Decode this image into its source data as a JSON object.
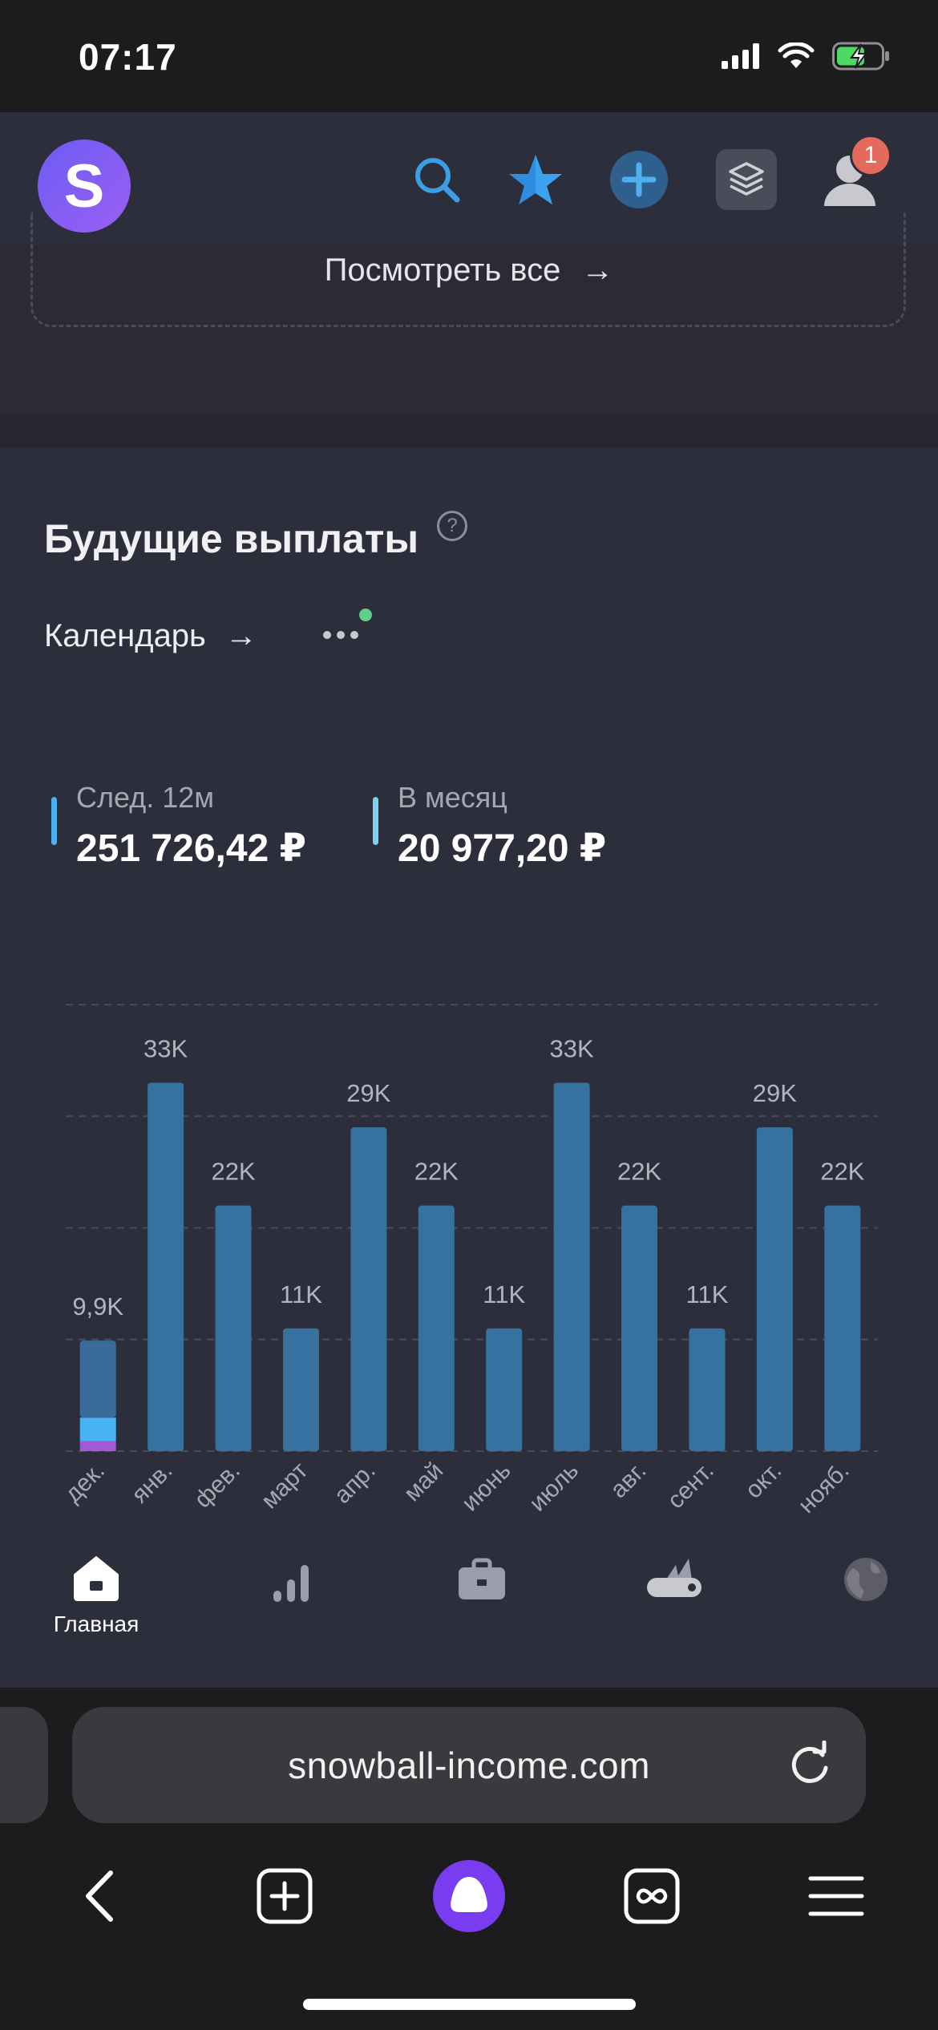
{
  "status_bar": {
    "time": "07:17"
  },
  "header": {
    "logo_letter": "S",
    "notification_count": "1"
  },
  "top_link": {
    "label": "Посмотреть все",
    "arrow": "→"
  },
  "section": {
    "title": "Будущие выплаты",
    "help": "?",
    "calendar_label": "Календарь",
    "calendar_arrow": "→",
    "stats": [
      {
        "label": "След. 12м",
        "value": "251 726,42 ₽",
        "color": "#4fb0ee"
      },
      {
        "label": "В месяц",
        "value": "20 977,20 ₽",
        "color": "#7ed0f0"
      }
    ]
  },
  "chart_data": {
    "type": "bar",
    "categories": [
      "дек.",
      "янв.",
      "фев.",
      "март",
      "апр.",
      "май",
      "июнь",
      "июль",
      "авг.",
      "сент.",
      "окт.",
      "нояб."
    ],
    "values": [
      9.9,
      33,
      22,
      11,
      29,
      22,
      11,
      33,
      22,
      11,
      29,
      22
    ],
    "data_labels": [
      "9,9K",
      "33K",
      "22K",
      "11K",
      "29K",
      "22K",
      "11K",
      "33K",
      "22K",
      "11K",
      "29K",
      "22K"
    ],
    "ylim": [
      0,
      40
    ],
    "grid": true,
    "stacked_first_bar": [
      {
        "color": "#3a6c9a",
        "value": 6.9
      },
      {
        "color": "#49b3f2",
        "value": 2.1
      },
      {
        "color": "#a05ad8",
        "value": 0.9
      }
    ],
    "bar_color": "#36729f",
    "title": "",
    "xlabel": "",
    "ylabel": ""
  },
  "tabs": [
    {
      "label": "Главная",
      "icon": "home-icon"
    },
    {
      "label": "",
      "icon": "analytics-icon"
    },
    {
      "label": "",
      "icon": "portfolio-icon"
    },
    {
      "label": "",
      "icon": "tools-icon"
    },
    {
      "label": "",
      "icon": "globe-icon"
    }
  ],
  "browser": {
    "url": "snowball-income.com"
  },
  "colors": {
    "accent": "#4fb0ee",
    "brand": "#7a5cf5",
    "badge": "#e46a5d",
    "dot": "#5fcf89"
  }
}
